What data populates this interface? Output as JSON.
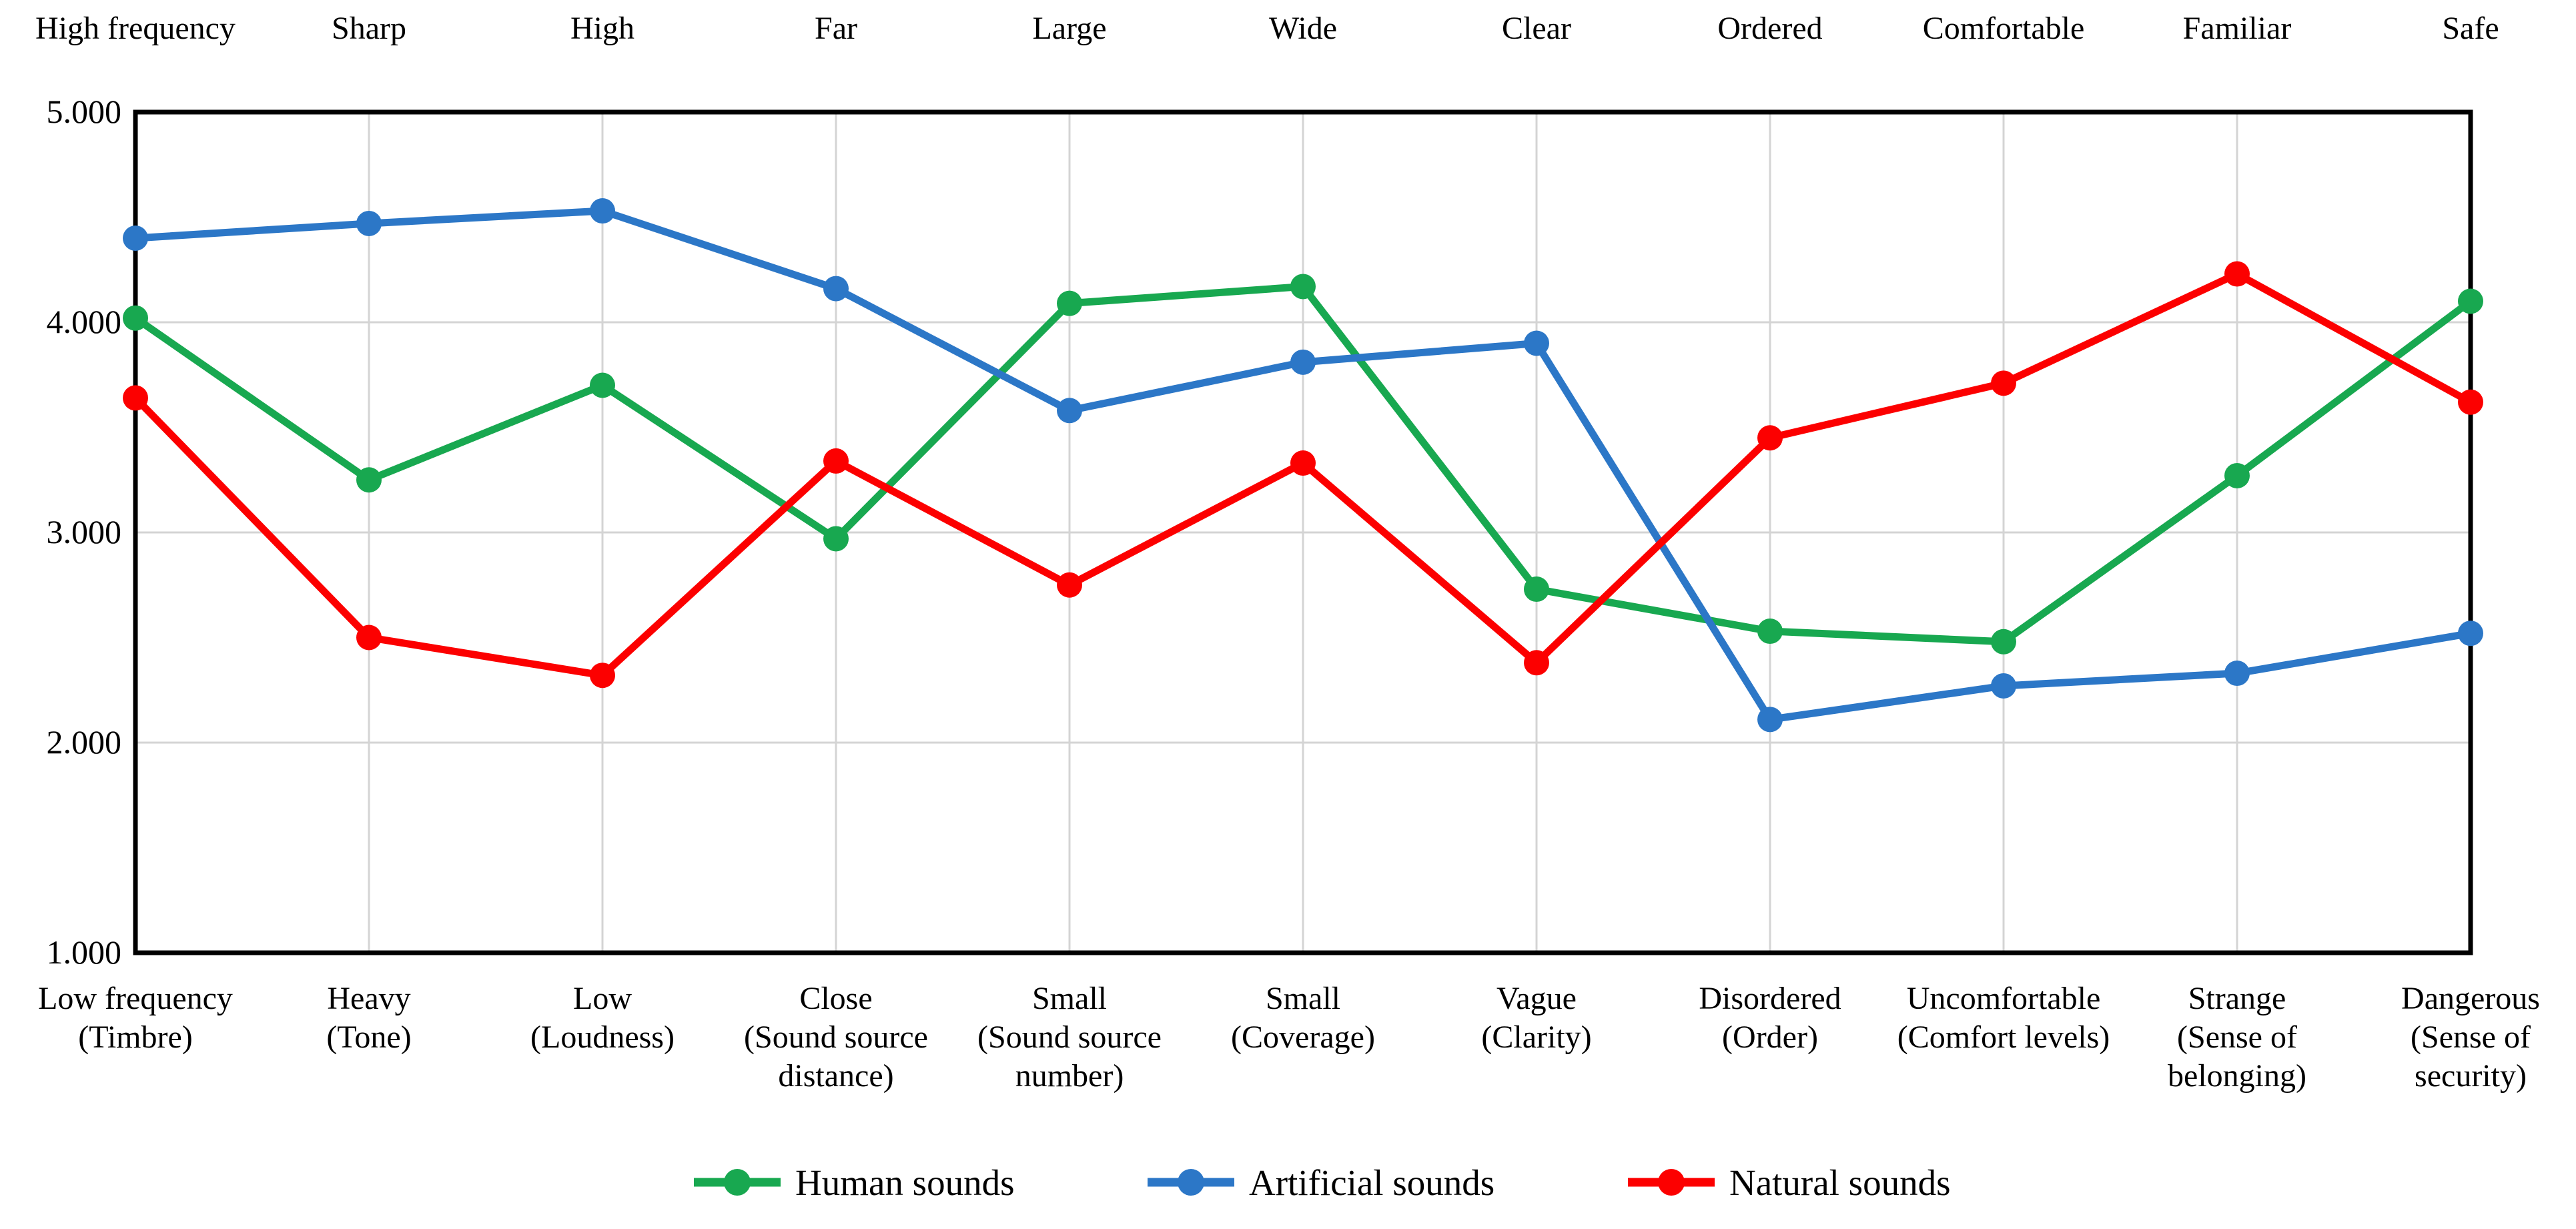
{
  "chart_data": {
    "type": "line",
    "title": "",
    "grid": true,
    "legend_position": "bottom",
    "y_axis": {
      "min": 1.0,
      "max": 5.0,
      "step": 1.0,
      "tick_values": [
        5,
        4,
        3,
        2,
        1
      ],
      "tick_labels": [
        "5.000",
        "4.000",
        "3.000",
        "2.000",
        "1.000"
      ]
    },
    "categories_top": [
      "High frequency",
      "Sharp",
      "High",
      "Far",
      "Large",
      "Wide",
      "Clear",
      "Ordered",
      "Comfortable",
      "Familiar",
      "Safe"
    ],
    "categories_bottom": [
      [
        "Low frequency",
        "(Timbre)"
      ],
      [
        "Heavy",
        "(Tone)"
      ],
      [
        "Low",
        "(Loudness)"
      ],
      [
        "Close",
        "(Sound source",
        "distance)"
      ],
      [
        "Small",
        "(Sound source",
        "number)"
      ],
      [
        "Small",
        "(Coverage)"
      ],
      [
        "Vague",
        "(Clarity)"
      ],
      [
        "Disordered",
        "(Order)"
      ],
      [
        "Uncomfortable",
        "(Comfort levels)"
      ],
      [
        "Strange",
        "(Sense of",
        "belonging)"
      ],
      [
        "Dangerous",
        "(Sense of",
        "security)"
      ]
    ],
    "series": [
      {
        "name": "Human sounds",
        "color": "#18A850",
        "values": [
          4.02,
          3.25,
          3.7,
          2.97,
          4.09,
          4.17,
          2.73,
          2.53,
          2.48,
          3.27,
          4.1
        ]
      },
      {
        "name": "Artificial sounds",
        "color": "#2C77C7",
        "values": [
          4.4,
          4.47,
          4.53,
          4.16,
          3.58,
          3.81,
          3.9,
          2.11,
          2.27,
          2.33,
          2.52
        ]
      },
      {
        "name": "Natural sounds",
        "color": "#FC0000",
        "values": [
          3.64,
          2.5,
          2.32,
          3.34,
          2.75,
          3.33,
          2.38,
          3.45,
          3.71,
          4.23,
          3.62
        ]
      }
    ]
  },
  "colors": {
    "gridline": "#D4D4D4",
    "axis_border": "#000000",
    "text": "#000000",
    "background": "#FFFFFF"
  }
}
